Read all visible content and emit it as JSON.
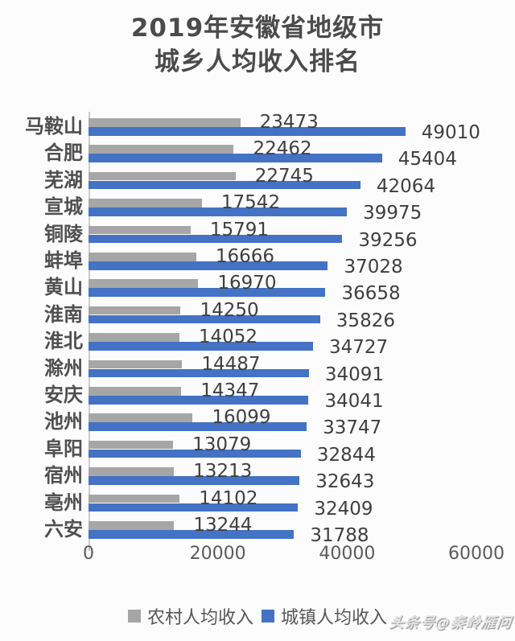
{
  "title": {
    "line1": "2019年安徽省地级市",
    "line2": "城乡人均收入排名"
  },
  "chart_data": {
    "type": "bar",
    "orientation": "horizontal",
    "title": "2019年安徽省地级市城乡人均收入排名",
    "categories": [
      "马鞍山",
      "合肥",
      "芜湖",
      "宣城",
      "铜陵",
      "蚌埠",
      "黄山",
      "淮南",
      "淮北",
      "滁州",
      "安庆",
      "池州",
      "阜阳",
      "宿州",
      "亳州",
      "六安"
    ],
    "series": [
      {
        "name": "农村人均收入",
        "color": "#a6a6a6",
        "values": [
          23473,
          22462,
          22745,
          17542,
          15791,
          16666,
          16970,
          14250,
          14052,
          14487,
          14347,
          16099,
          13079,
          13213,
          14102,
          13244
        ]
      },
      {
        "name": "城镇人均收入",
        "color": "#4472c4",
        "values": [
          49010,
          45404,
          42064,
          39975,
          39256,
          37028,
          36658,
          35826,
          34727,
          34091,
          34041,
          33747,
          32844,
          32643,
          32409,
          31788
        ]
      }
    ],
    "xlim": [
      0,
      60000
    ],
    "xticks": [
      0,
      20000,
      40000,
      60000
    ],
    "xtick_labels": [
      "0",
      "20000",
      "40000",
      "60000"
    ],
    "grid": false,
    "value_labels": true,
    "legend_position": "bottom"
  },
  "watermark": "头条号@秦岭雁问",
  "colors": {
    "rural_bar": "#a6a6a6",
    "urban_bar": "#4472c4",
    "title_text": "#4b4b4b",
    "value_text": "#3f3f3f",
    "axis_text": "#5a5a5a",
    "background": "#fcfcfc"
  }
}
